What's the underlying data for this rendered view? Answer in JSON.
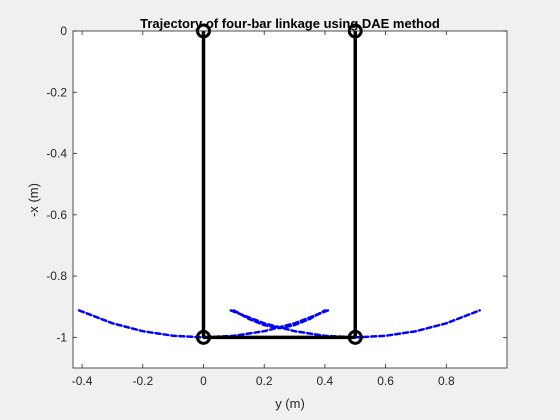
{
  "chart_data": {
    "type": "line",
    "title": "Trajectory of four-bar linkage using DAE method",
    "xlabel": "y (m)",
    "ylabel": "-x (m)",
    "xlim": [
      -0.43,
      1.0
    ],
    "ylim": [
      -1.1,
      0.0
    ],
    "xticks": [
      -0.4,
      -0.2,
      0,
      0.2,
      0.4,
      0.6,
      0.8
    ],
    "xtick_labels": [
      "-0.4",
      "-0.2",
      "0",
      "0.2",
      "0.4",
      "0.6",
      "0.8"
    ],
    "yticks": [
      0,
      -0.2,
      -0.4,
      -0.6,
      -0.8,
      -1
    ],
    "ytick_labels": [
      "0",
      "-0.2",
      "-0.4",
      "-0.6",
      "-0.8",
      "-1"
    ],
    "grid": false,
    "colors": {
      "trajectory": "#0000ff",
      "linkage": "#000000"
    },
    "series": [
      {
        "style": "dashed",
        "x": [
          -0.41,
          -0.3,
          -0.2,
          -0.1,
          0.0
        ],
        "y": [
          -0.912,
          -0.954,
          -0.98,
          -0.995,
          -1.0
        ]
      },
      {
        "style": "dashed",
        "x": [
          0.5,
          0.6,
          0.7,
          0.8,
          0.91
        ],
        "y": [
          -1.0,
          -0.995,
          -0.98,
          -0.954,
          -0.912
        ]
      },
      {
        "style": "dashed",
        "x": [
          0.1,
          0.15,
          0.2,
          0.25,
          0.3,
          0.35,
          0.4
        ],
        "y": [
          -0.912,
          -0.94,
          -0.96,
          -0.97,
          -0.96,
          -0.94,
          -0.912
        ]
      },
      {
        "style": "dashed",
        "x": [
          0.41,
          0.3,
          0.2,
          0.1,
          0.0
        ],
        "y": [
          -0.912,
          -0.954,
          -0.98,
          -0.995,
          -1.0
        ]
      },
      {
        "style": "dashed",
        "x": [
          0.09,
          0.2,
          0.3,
          0.4,
          0.5
        ],
        "y": [
          -0.912,
          -0.954,
          -0.98,
          -0.995,
          -1.0
        ]
      }
    ],
    "linkage": {
      "joints": [
        {
          "x": 0,
          "y": 0
        },
        {
          "x": 0,
          "y": -1
        },
        {
          "x": 0.5,
          "y": -1
        },
        {
          "x": 0.5,
          "y": 0
        }
      ]
    }
  }
}
